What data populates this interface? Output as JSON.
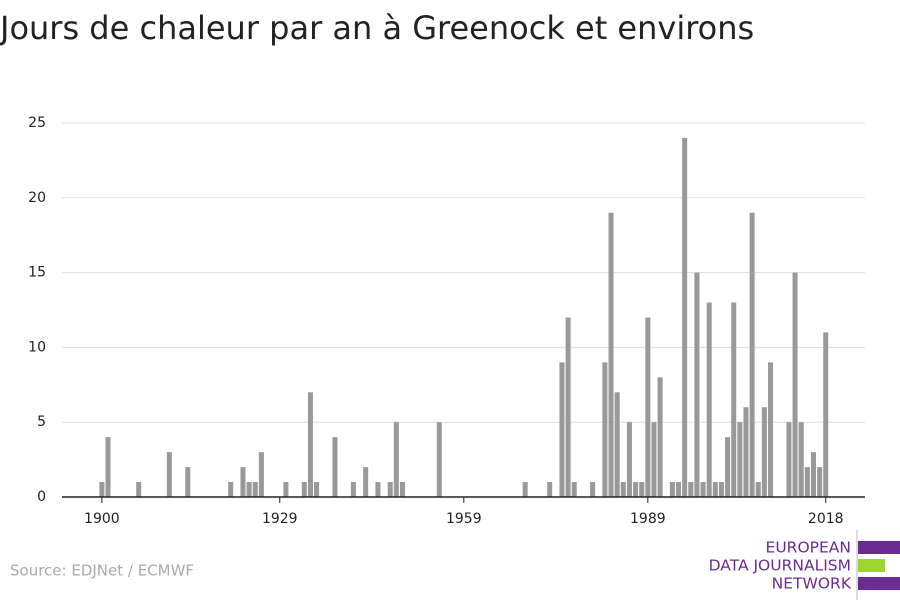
{
  "chart_data": {
    "type": "bar",
    "title": "Jours de chaleur par an à Greenock et environs",
    "source": "Source: EDJNet / ECMWF",
    "logo": [
      "EUROPEAN",
      "DATA JOURNALISM",
      "NETWORK"
    ],
    "color": "#999999",
    "x": [
      1900,
      1901,
      1902,
      1903,
      1904,
      1905,
      1906,
      1907,
      1908,
      1909,
      1910,
      1911,
      1912,
      1913,
      1914,
      1915,
      1916,
      1917,
      1918,
      1919,
      1920,
      1921,
      1922,
      1923,
      1924,
      1925,
      1926,
      1927,
      1928,
      1929,
      1930,
      1931,
      1932,
      1933,
      1934,
      1935,
      1936,
      1937,
      1938,
      1939,
      1940,
      1941,
      1942,
      1943,
      1944,
      1945,
      1946,
      1947,
      1948,
      1949,
      1950,
      1951,
      1952,
      1953,
      1954,
      1955,
      1956,
      1957,
      1958,
      1959,
      1960,
      1961,
      1962,
      1963,
      1964,
      1965,
      1966,
      1967,
      1968,
      1969,
      1970,
      1971,
      1972,
      1973,
      1974,
      1975,
      1976,
      1977,
      1978,
      1979,
      1980,
      1981,
      1982,
      1983,
      1984,
      1985,
      1986,
      1987,
      1988,
      1989,
      1990,
      1991,
      1992,
      1993,
      1994,
      1995,
      1996,
      1997,
      1998,
      1999,
      2000,
      2001,
      2002,
      2003,
      2004,
      2005,
      2006,
      2007,
      2008,
      2009,
      2010,
      2011,
      2012,
      2013,
      2014,
      2015,
      2016,
      2017,
      2018
    ],
    "values": [
      1,
      4,
      0,
      0,
      0,
      0,
      1,
      0,
      0,
      0,
      0,
      3,
      0,
      0,
      2,
      0,
      0,
      0,
      0,
      0,
      0,
      1,
      0,
      2,
      1,
      1,
      3,
      0,
      0,
      0,
      1,
      0,
      0,
      1,
      7,
      1,
      0,
      0,
      4,
      0,
      0,
      1,
      0,
      2,
      0,
      1,
      0,
      1,
      5,
      1,
      0,
      0,
      0,
      0,
      0,
      5,
      0,
      0,
      0,
      0,
      0,
      0,
      0,
      0,
      0,
      0,
      0,
      0,
      0,
      1,
      0,
      0,
      0,
      1,
      0,
      9,
      12,
      1,
      0,
      0,
      1,
      0,
      9,
      19,
      7,
      1,
      5,
      1,
      1,
      12,
      5,
      8,
      0,
      1,
      1,
      24,
      1,
      15,
      1,
      13,
      1,
      1,
      4,
      13,
      5,
      6,
      19,
      1,
      6,
      9,
      0,
      0,
      5,
      15,
      5,
      2,
      3,
      2,
      11
    ],
    "xlim": [
      1893.5,
      2024.4
    ],
    "xticks": [
      1900,
      1929,
      1959,
      1989,
      2018
    ],
    "ylim": [
      0,
      25
    ],
    "yticks": [
      0,
      5,
      10,
      15,
      20,
      25
    ],
    "grid": true
  }
}
